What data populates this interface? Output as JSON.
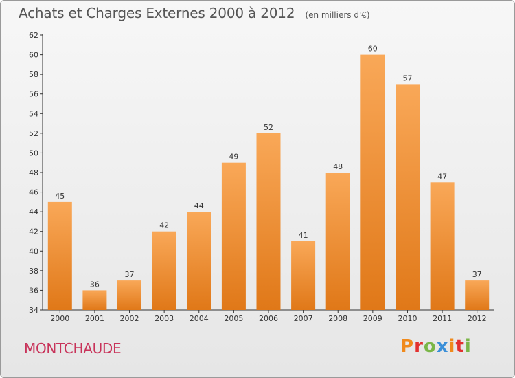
{
  "title": "Achats et Charges Externes 2000 à 2012",
  "unit": "(en milliers d'€)",
  "commune": "MONTCHAUDE",
  "logo": {
    "letters": [
      "P",
      "r",
      "o",
      "x",
      "i",
      "t",
      "i"
    ],
    "colors": [
      "#f08a1c",
      "#e2312f",
      "#7ab648",
      "#3a8fd8",
      "#f08a1c",
      "#e2312f",
      "#7ab648"
    ]
  },
  "colors": {
    "bar_light": "#f9a858",
    "bar_dark": "#e07818",
    "title": "#555555",
    "commune": "#c8335a"
  },
  "chart_data": {
    "type": "bar",
    "title": "Achats et Charges Externes 2000 à 2012",
    "categories": [
      "2000",
      "2001",
      "2002",
      "2003",
      "2004",
      "2005",
      "2006",
      "2007",
      "2008",
      "2009",
      "2010",
      "2011",
      "2012"
    ],
    "values": [
      45,
      36,
      37,
      42,
      44,
      49,
      52,
      41,
      48,
      60,
      57,
      47,
      37
    ],
    "ylim": [
      34,
      62
    ],
    "yticks": [
      34,
      36,
      38,
      40,
      42,
      44,
      46,
      48,
      50,
      52,
      54,
      56,
      58,
      60,
      62
    ],
    "grid": false,
    "legend": "none"
  }
}
